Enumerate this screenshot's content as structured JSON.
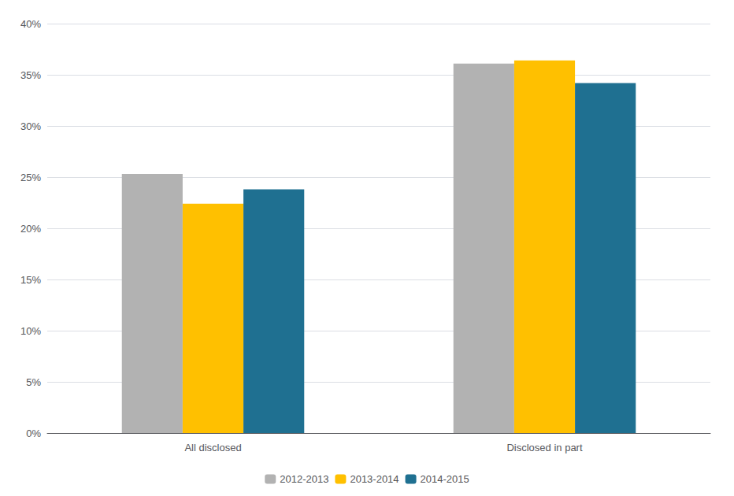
{
  "chart_data": {
    "type": "bar",
    "categories": [
      "All disclosed",
      "Disclosed in part"
    ],
    "series": [
      {
        "name": "2012-2013",
        "color": "#b2b2b2",
        "values": [
          0.253,
          0.361
        ]
      },
      {
        "name": "2013-2014",
        "color": "#ffc000",
        "values": [
          0.224,
          0.364
        ]
      },
      {
        "name": "2014-2015",
        "color": "#1f7091",
        "values": [
          0.238,
          0.342
        ]
      }
    ],
    "ylim": [
      0,
      0.4
    ],
    "yticks": [
      {
        "value": 0.0,
        "label": "0%"
      },
      {
        "value": 0.05,
        "label": "5%"
      },
      {
        "value": 0.1,
        "label": "10%"
      },
      {
        "value": 0.15,
        "label": "15%"
      },
      {
        "value": 0.2,
        "label": "20%"
      },
      {
        "value": 0.25,
        "label": "25%"
      },
      {
        "value": 0.3,
        "label": "30%"
      },
      {
        "value": 0.35,
        "label": "35%"
      },
      {
        "value": 0.4,
        "label": "40%"
      }
    ],
    "grid": true,
    "legend": "bottom"
  }
}
